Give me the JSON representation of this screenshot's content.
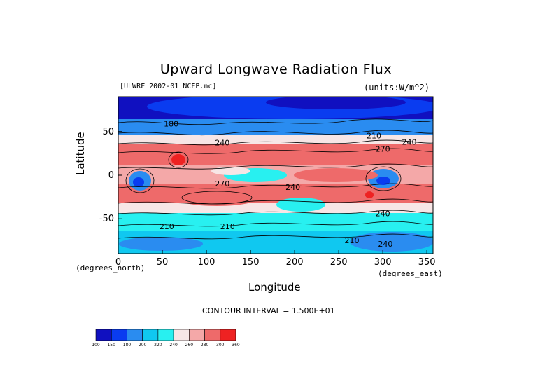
{
  "chart_data": {
    "type": "heatmap",
    "title": "Upward Longwave Radiation Flux",
    "source_label": "[ULWRF_2002-01_NCEP.nc]",
    "units_label": "(units:W/m^2)",
    "xlabel": "Longitude",
    "ylabel": "Latitude",
    "x_unit_label": "(degrees_east)",
    "y_unit_label": "(degrees_north)",
    "xlim": [
      0,
      357
    ],
    "ylim": [
      -90,
      90
    ],
    "x_ticks": [
      0,
      50,
      100,
      150,
      200,
      250,
      300,
      350
    ],
    "y_ticks": [
      50,
      0,
      -50
    ],
    "contour_interval_label": "CONTOUR INTERVAL = 1.500E+01",
    "colorbar": {
      "levels": [
        100,
        150,
        180,
        200,
        220,
        240,
        260,
        280,
        300,
        360
      ],
      "colors": [
        "#1010c0",
        "#0a3cf0",
        "#2a8cf0",
        "#10c8f0",
        "#28f0f0",
        "#f7e6e6",
        "#f4a8a8",
        "#ee6a6a",
        "#ee2222"
      ]
    },
    "contour_labels": [
      {
        "text": "180",
        "lon": 60,
        "lat": 56
      },
      {
        "text": "240",
        "lon": 118,
        "lat": 34
      },
      {
        "text": "210",
        "lon": 290,
        "lat": 42
      },
      {
        "text": "270",
        "lon": 300,
        "lat": 27
      },
      {
        "text": "240",
        "lon": 330,
        "lat": 35
      },
      {
        "text": "270",
        "lon": 118,
        "lat": -13
      },
      {
        "text": "240",
        "lon": 198,
        "lat": -17
      },
      {
        "text": "240",
        "lon": 300,
        "lat": -47
      },
      {
        "text": "210",
        "lon": 55,
        "lat": -62
      },
      {
        "text": "210",
        "lon": 124,
        "lat": -62
      },
      {
        "text": "210",
        "lon": 265,
        "lat": -78
      },
      {
        "text": "240",
        "lon": 303,
        "lat": -82
      }
    ]
  }
}
